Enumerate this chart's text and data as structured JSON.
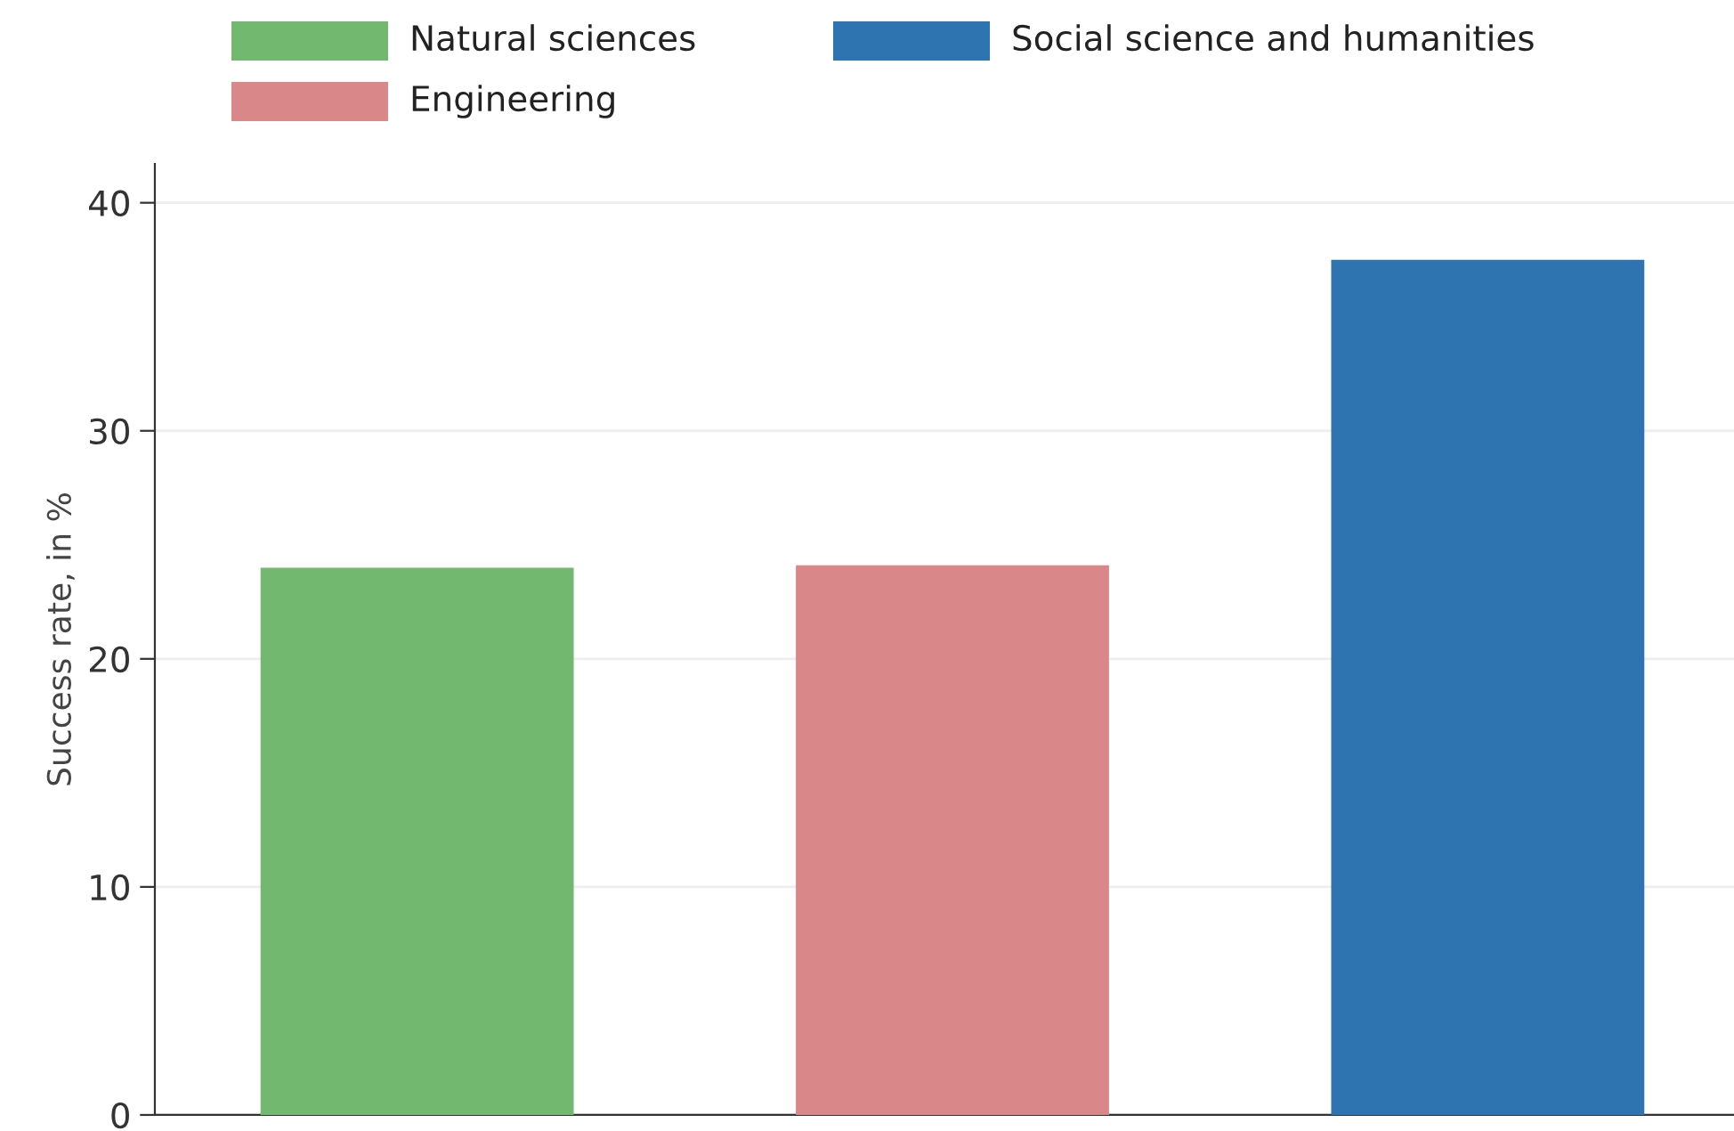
{
  "chart_data": {
    "type": "bar",
    "ylabel": "Success rate, in %",
    "categories": [
      null,
      null,
      null
    ],
    "series": [
      {
        "name": "Natural sciences",
        "color": "#72b86f",
        "values": [
          24.0,
          null,
          null
        ]
      },
      {
        "name": "Social science and humanities",
        "color": "#2e74b1",
        "values": [
          null,
          null,
          37.5
        ]
      },
      {
        "name": "Engineering",
        "color": "#d98788",
        "values": [
          null,
          24.1,
          null
        ]
      }
    ],
    "ylim": [
      0,
      41.7
    ],
    "yticks": [
      0,
      10,
      20,
      30,
      40
    ],
    "grid": "y",
    "legend": "top"
  }
}
